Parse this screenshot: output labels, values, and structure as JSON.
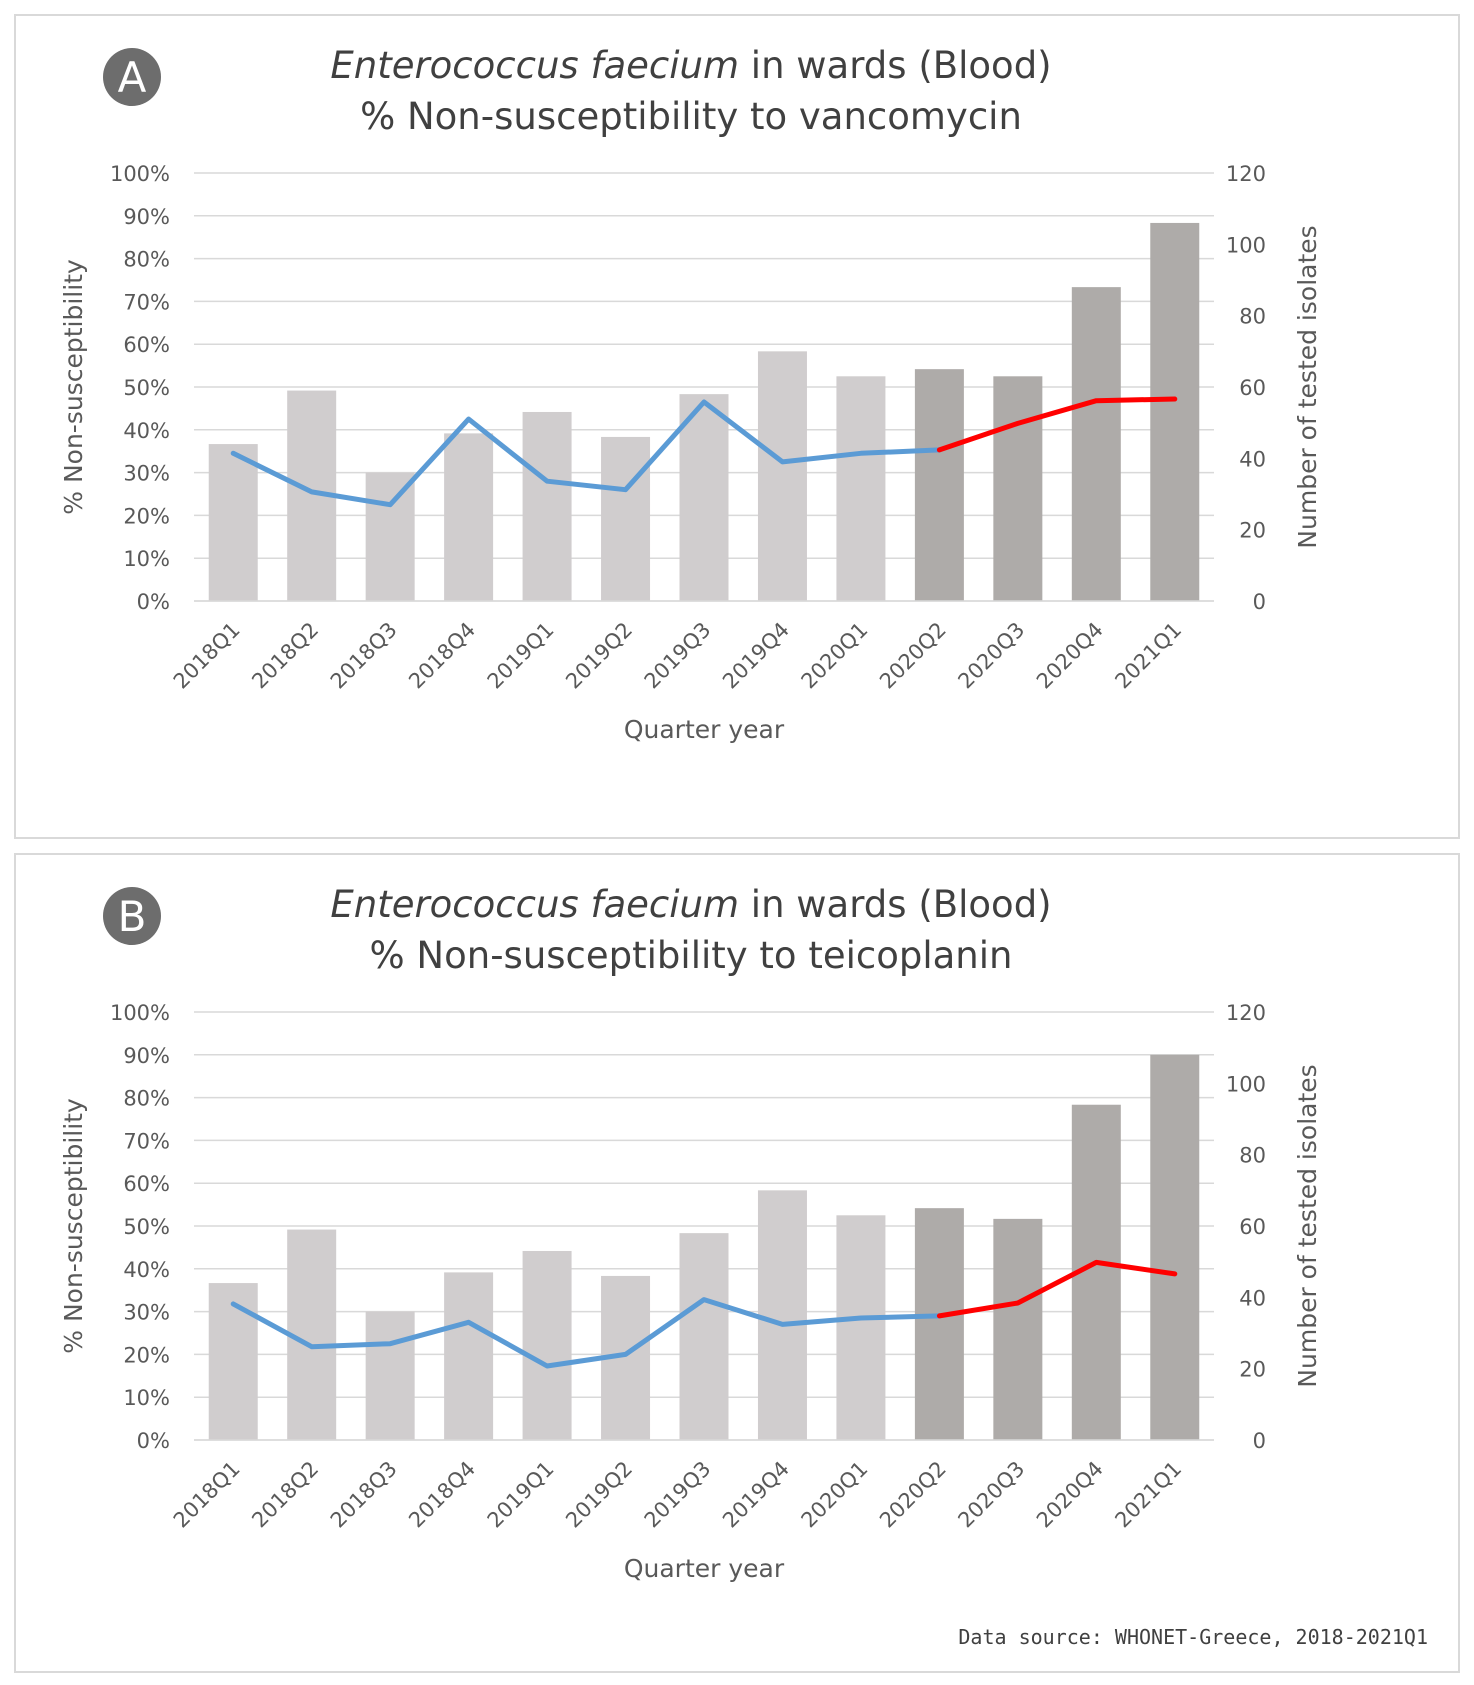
{
  "colors": {
    "bar_light": "#d0cdce",
    "bar_dark": "#aeaba9",
    "line_blue": "#5b9bd5",
    "line_red": "#ff0000",
    "grid": "#d9d9d9",
    "badge": "#6d6d6d"
  },
  "chart_data": [
    {
      "type": "bar+line",
      "panel_label": "A",
      "title_species": "Enterococcus faecium",
      "title_rest": " in wards (Blood)",
      "subtitle": "% Non-susceptibility to vancomycin",
      "xlabel": "Quarter year",
      "ylabel_left": "% Non-susceptibility",
      "ylabel_right": "Number of tested isolates",
      "ylim_left": [
        0,
        100
      ],
      "ylim_right": [
        0,
        120
      ],
      "left_ticks": [
        "0%",
        "10%",
        "20%",
        "30%",
        "40%",
        "50%",
        "60%",
        "70%",
        "80%",
        "90%",
        "100%"
      ],
      "right_ticks": [
        "0",
        "20",
        "40",
        "60",
        "80",
        "100",
        "120"
      ],
      "categories": [
        "2018Q1",
        "2018Q2",
        "2018Q3",
        "2018Q4",
        "2019Q1",
        "2019Q2",
        "2019Q3",
        "2019Q4",
        "2020Q1",
        "2020Q2",
        "2020Q3",
        "2020Q4",
        "2021Q1"
      ],
      "series": [
        {
          "name": "Number of tested isolates",
          "kind": "bar",
          "axis": "right",
          "values": [
            44,
            59,
            36,
            47,
            53,
            46,
            58,
            70,
            63,
            65,
            63,
            88,
            106
          ],
          "dark_from_index": 9
        },
        {
          "name": "% Non-susceptibility",
          "kind": "line",
          "axis": "left",
          "values": [
            34.5,
            25.5,
            22.5,
            42.5,
            28,
            26,
            46.5,
            32.5,
            34.5,
            35.3,
            41.5,
            46.8,
            47.2
          ],
          "highlight_from_index": 9
        }
      ]
    },
    {
      "type": "bar+line",
      "panel_label": "B",
      "title_species": "Enterococcus faecium",
      "title_rest": " in wards (Blood)",
      "subtitle": "% Non-susceptibility to teicoplanin",
      "xlabel": "Quarter year",
      "ylabel_left": "% Non-susceptibility",
      "ylabel_right": "Number of tested isolates",
      "ylim_left": [
        0,
        100
      ],
      "ylim_right": [
        0,
        120
      ],
      "left_ticks": [
        "0%",
        "10%",
        "20%",
        "30%",
        "40%",
        "50%",
        "60%",
        "70%",
        "80%",
        "90%",
        "100%"
      ],
      "right_ticks": [
        "0",
        "20",
        "40",
        "60",
        "80",
        "100",
        "120"
      ],
      "categories": [
        "2018Q1",
        "2018Q2",
        "2018Q3",
        "2018Q4",
        "2019Q1",
        "2019Q2",
        "2019Q3",
        "2019Q4",
        "2020Q1",
        "2020Q2",
        "2020Q3",
        "2020Q4",
        "2021Q1"
      ],
      "series": [
        {
          "name": "Number of tested isolates",
          "kind": "bar",
          "axis": "right",
          "values": [
            44,
            59,
            36,
            47,
            53,
            46,
            58,
            70,
            63,
            65,
            62,
            94,
            108
          ],
          "dark_from_index": 9
        },
        {
          "name": "% Non-susceptibility",
          "kind": "line",
          "axis": "left",
          "values": [
            31.8,
            21.8,
            22.5,
            27.5,
            17.3,
            20,
            32.8,
            27,
            28.5,
            29,
            32,
            41.5,
            38.8
          ],
          "highlight_from_index": 9
        }
      ]
    }
  ],
  "source": "Data source: WHONET-Greece, 2018-2021Q1"
}
